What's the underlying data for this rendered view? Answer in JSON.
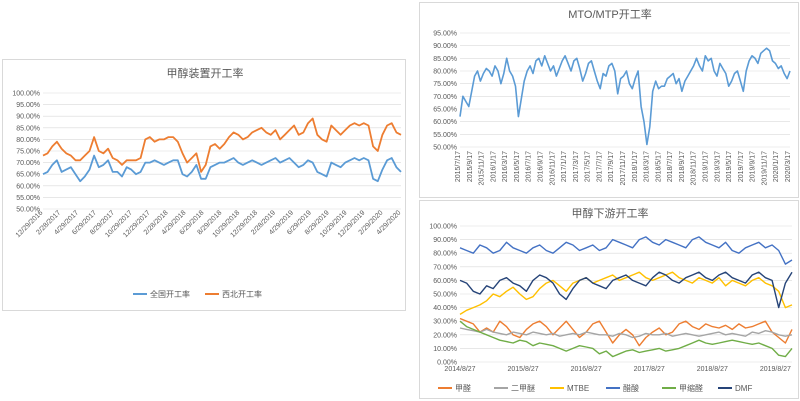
{
  "chart_data": [
    {
      "type": "line",
      "title": "甲醇装置开工率",
      "ylim": [
        0.5,
        1.0
      ],
      "y_ticks": [
        "100.00%",
        "95.00%",
        "90.00%",
        "85.00%",
        "80.00%",
        "75.00%",
        "70.00%",
        "65.00%",
        "60.00%",
        "55.00%",
        "50.00%"
      ],
      "x_ticks": [
        "12/29/2016",
        "2/28/2017",
        "4/29/2017",
        "6/29/2017",
        "8/29/2017",
        "10/29/2017",
        "12/29/2017",
        "2/28/2018",
        "4/29/2018",
        "6/29/2018",
        "8/29/2018",
        "10/29/2018",
        "12/29/2018",
        "2/28/2019",
        "4/29/2019",
        "6/29/2019",
        "8/29/2019",
        "10/29/2019",
        "12/29/2019",
        "2/29/2020",
        "4/29/2020"
      ],
      "grid": true,
      "legend": "bottom",
      "series": [
        {
          "name": "全国开工率",
          "color": "#5b9bd5",
          "values": [
            0.65,
            0.66,
            0.69,
            0.71,
            0.66,
            0.67,
            0.68,
            0.65,
            0.62,
            0.64,
            0.67,
            0.73,
            0.68,
            0.69,
            0.71,
            0.66,
            0.66,
            0.64,
            0.68,
            0.67,
            0.65,
            0.66,
            0.7,
            0.7,
            0.71,
            0.7,
            0.69,
            0.7,
            0.71,
            0.71,
            0.65,
            0.64,
            0.66,
            0.69,
            0.63,
            0.63,
            0.68,
            0.69,
            0.7,
            0.7,
            0.71,
            0.72,
            0.7,
            0.69,
            0.7,
            0.71,
            0.7,
            0.69,
            0.7,
            0.71,
            0.72,
            0.7,
            0.71,
            0.72,
            0.7,
            0.68,
            0.69,
            0.71,
            0.7,
            0.66,
            0.65,
            0.64,
            0.7,
            0.69,
            0.68,
            0.7,
            0.71,
            0.72,
            0.71,
            0.72,
            0.71,
            0.63,
            0.62,
            0.67,
            0.71,
            0.72,
            0.68,
            0.66
          ]
        },
        {
          "name": "西北开工率",
          "color": "#ed7d31",
          "values": [
            0.73,
            0.74,
            0.77,
            0.79,
            0.76,
            0.74,
            0.73,
            0.71,
            0.71,
            0.73,
            0.75,
            0.81,
            0.75,
            0.74,
            0.76,
            0.72,
            0.71,
            0.69,
            0.71,
            0.71,
            0.71,
            0.72,
            0.8,
            0.81,
            0.79,
            0.8,
            0.8,
            0.81,
            0.81,
            0.79,
            0.74,
            0.7,
            0.72,
            0.74,
            0.66,
            0.69,
            0.77,
            0.78,
            0.76,
            0.78,
            0.81,
            0.83,
            0.82,
            0.8,
            0.81,
            0.83,
            0.84,
            0.85,
            0.83,
            0.82,
            0.84,
            0.8,
            0.82,
            0.84,
            0.86,
            0.82,
            0.83,
            0.87,
            0.89,
            0.82,
            0.8,
            0.79,
            0.86,
            0.84,
            0.82,
            0.84,
            0.86,
            0.87,
            0.86,
            0.87,
            0.86,
            0.77,
            0.75,
            0.82,
            0.86,
            0.87,
            0.83,
            0.82
          ]
        }
      ]
    },
    {
      "type": "line",
      "title": "MTO/MTP开工率",
      "ylim": [
        0.5,
        0.95
      ],
      "y_ticks": [
        "95.00%",
        "90.00%",
        "85.00%",
        "80.00%",
        "75.00%",
        "70.00%",
        "65.00%",
        "60.00%",
        "55.00%",
        "50.00%"
      ],
      "x_ticks": [
        "2015/7/17",
        "2015/9/17",
        "2015/11/17",
        "2016/1/17",
        "2016/3/17",
        "2016/5/17",
        "2016/7/17",
        "2016/9/17",
        "2016/11/17",
        "2017/1/17",
        "2017/3/17",
        "2017/5/17",
        "2017/7/17",
        "2017/9/17",
        "2017/11/17",
        "2018/1/17",
        "2018/3/17",
        "2018/5/17",
        "2018/7/17",
        "2018/9/17",
        "2018/11/17",
        "2019/1/17",
        "2019/3/17",
        "2019/5/17",
        "2019/7/17",
        "2019/9/17",
        "2019/11/17",
        "2020/1/17",
        "2020/3/17"
      ],
      "grid": true,
      "series": [
        {
          "color": "#5b9bd5",
          "values": [
            0.62,
            0.7,
            0.68,
            0.66,
            0.72,
            0.78,
            0.8,
            0.76,
            0.79,
            0.81,
            0.8,
            0.78,
            0.82,
            0.8,
            0.75,
            0.79,
            0.85,
            0.8,
            0.78,
            0.74,
            0.62,
            0.69,
            0.76,
            0.8,
            0.82,
            0.79,
            0.84,
            0.85,
            0.82,
            0.86,
            0.83,
            0.8,
            0.82,
            0.78,
            0.81,
            0.84,
            0.86,
            0.83,
            0.8,
            0.84,
            0.85,
            0.81,
            0.76,
            0.79,
            0.83,
            0.84,
            0.8,
            0.76,
            0.73,
            0.79,
            0.78,
            0.82,
            0.83,
            0.8,
            0.71,
            0.77,
            0.78,
            0.8,
            0.75,
            0.73,
            0.77,
            0.8,
            0.66,
            0.6,
            0.51,
            0.58,
            0.72,
            0.76,
            0.73,
            0.74,
            0.74,
            0.77,
            0.78,
            0.79,
            0.75,
            0.77,
            0.72,
            0.76,
            0.78,
            0.8,
            0.82,
            0.85,
            0.82,
            0.8,
            0.86,
            0.84,
            0.85,
            0.8,
            0.78,
            0.83,
            0.81,
            0.79,
            0.74,
            0.76,
            0.79,
            0.8,
            0.76,
            0.72,
            0.8,
            0.84,
            0.86,
            0.85,
            0.83,
            0.87,
            0.88,
            0.89,
            0.88,
            0.84,
            0.83,
            0.81,
            0.82,
            0.79,
            0.77,
            0.8
          ]
        }
      ]
    },
    {
      "type": "line",
      "title": "甲醇下游开工率",
      "ylim": [
        0.0,
        1.0
      ],
      "y_ticks": [
        "100.00%",
        "90.00%",
        "80.00%",
        "70.00%",
        "60.00%",
        "50.00%",
        "40.00%",
        "30.00%",
        "20.00%",
        "10.00%",
        "0.00%"
      ],
      "x_ticks": [
        "2014/8/27",
        "2015/8/27",
        "2016/8/27",
        "2017/8/27",
        "2018/8/27",
        "2019/8/27"
      ],
      "grid": true,
      "legend": "bottom",
      "series": [
        {
          "name": "甲醛",
          "color": "#ed7d31",
          "values": [
            0.32,
            0.3,
            0.28,
            0.22,
            0.25,
            0.22,
            0.3,
            0.26,
            0.2,
            0.18,
            0.24,
            0.28,
            0.3,
            0.26,
            0.2,
            0.25,
            0.3,
            0.24,
            0.18,
            0.22,
            0.28,
            0.3,
            0.22,
            0.14,
            0.2,
            0.24,
            0.2,
            0.12,
            0.18,
            0.22,
            0.25,
            0.2,
            0.22,
            0.28,
            0.3,
            0.26,
            0.24,
            0.28,
            0.26,
            0.25,
            0.27,
            0.24,
            0.28,
            0.25,
            0.26,
            0.28,
            0.3,
            0.22,
            0.18,
            0.14,
            0.24
          ]
        },
        {
          "name": "二甲醚",
          "color": "#a5a5a5",
          "values": [
            0.25,
            0.24,
            0.23,
            0.22,
            0.24,
            0.22,
            0.21,
            0.2,
            0.22,
            0.21,
            0.2,
            0.22,
            0.21,
            0.2,
            0.21,
            0.19,
            0.2,
            0.21,
            0.2,
            0.22,
            0.21,
            0.2,
            0.2,
            0.19,
            0.21,
            0.2,
            0.18,
            0.19,
            0.21,
            0.2,
            0.2,
            0.21,
            0.19,
            0.2,
            0.21,
            0.2,
            0.19,
            0.2,
            0.21,
            0.22,
            0.2,
            0.21,
            0.2,
            0.19,
            0.22,
            0.21,
            0.23,
            0.22,
            0.2,
            0.19,
            0.2
          ]
        },
        {
          "name": "MTBE",
          "color": "#ffc000",
          "values": [
            0.35,
            0.38,
            0.4,
            0.42,
            0.45,
            0.5,
            0.48,
            0.52,
            0.55,
            0.5,
            0.46,
            0.48,
            0.54,
            0.58,
            0.6,
            0.56,
            0.52,
            0.58,
            0.6,
            0.62,
            0.58,
            0.6,
            0.62,
            0.64,
            0.6,
            0.62,
            0.64,
            0.66,
            0.62,
            0.6,
            0.62,
            0.64,
            0.66,
            0.62,
            0.6,
            0.58,
            0.62,
            0.6,
            0.58,
            0.62,
            0.56,
            0.6,
            0.58,
            0.56,
            0.6,
            0.62,
            0.58,
            0.56,
            0.52,
            0.4,
            0.42
          ]
        },
        {
          "name": "醋酸",
          "color": "#4472c4",
          "values": [
            0.84,
            0.82,
            0.8,
            0.86,
            0.84,
            0.8,
            0.82,
            0.88,
            0.84,
            0.82,
            0.8,
            0.84,
            0.86,
            0.82,
            0.8,
            0.84,
            0.88,
            0.86,
            0.82,
            0.84,
            0.86,
            0.82,
            0.84,
            0.9,
            0.88,
            0.86,
            0.84,
            0.9,
            0.92,
            0.88,
            0.86,
            0.9,
            0.88,
            0.86,
            0.84,
            0.9,
            0.92,
            0.88,
            0.86,
            0.84,
            0.88,
            0.82,
            0.8,
            0.84,
            0.86,
            0.88,
            0.84,
            0.86,
            0.82,
            0.72,
            0.75
          ]
        },
        {
          "name": "甲缩醛",
          "color": "#70ad47",
          "values": [
            0.3,
            0.26,
            0.24,
            0.22,
            0.2,
            0.18,
            0.16,
            0.15,
            0.14,
            0.16,
            0.15,
            0.12,
            0.14,
            0.13,
            0.12,
            0.1,
            0.08,
            0.1,
            0.12,
            0.11,
            0.1,
            0.06,
            0.08,
            0.04,
            0.06,
            0.08,
            0.09,
            0.07,
            0.08,
            0.09,
            0.1,
            0.08,
            0.09,
            0.1,
            0.12,
            0.14,
            0.16,
            0.14,
            0.13,
            0.14,
            0.15,
            0.16,
            0.15,
            0.14,
            0.13,
            0.14,
            0.12,
            0.1,
            0.05,
            0.04,
            0.1
          ]
        },
        {
          "name": "DMF",
          "color": "#264478",
          "values": [
            0.6,
            0.58,
            0.52,
            0.5,
            0.56,
            0.54,
            0.6,
            0.62,
            0.58,
            0.56,
            0.52,
            0.6,
            0.64,
            0.62,
            0.58,
            0.5,
            0.46,
            0.54,
            0.6,
            0.62,
            0.58,
            0.56,
            0.54,
            0.6,
            0.62,
            0.64,
            0.6,
            0.58,
            0.56,
            0.62,
            0.66,
            0.64,
            0.6,
            0.58,
            0.62,
            0.64,
            0.66,
            0.62,
            0.6,
            0.64,
            0.66,
            0.62,
            0.6,
            0.58,
            0.64,
            0.66,
            0.62,
            0.6,
            0.4,
            0.58,
            0.66
          ]
        }
      ]
    }
  ]
}
